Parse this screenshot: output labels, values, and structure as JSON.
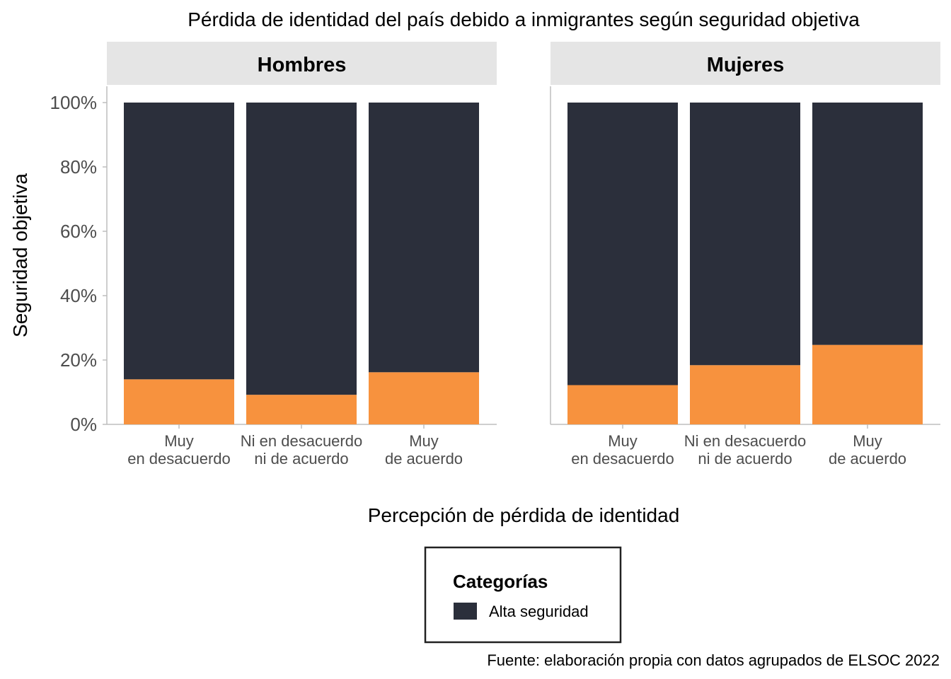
{
  "chart_data": {
    "type": "bar",
    "stacked": true,
    "title": "Pérdida de identidad del país debido a inmigrantes según seguridad objetiva",
    "xlabel": "Percepción de pérdida de identidad",
    "ylabel": "Seguridad objetiva",
    "ylim": [
      0,
      1
    ],
    "y_ticks": [
      "0%",
      "20%",
      "40%",
      "60%",
      "80%",
      "100%"
    ],
    "y_tick_values": [
      0,
      0.2,
      0.4,
      0.6,
      0.8,
      1.0
    ],
    "categories": [
      [
        "Muy",
        "en desacuerdo"
      ],
      [
        "Ni en desacuerdo",
        "ni de acuerdo"
      ],
      [
        "Muy",
        "de acuerdo"
      ]
    ],
    "facets": [
      {
        "name": "Hombres",
        "series": [
          {
            "name": "",
            "color": "#F7923E",
            "values": [
              0.14,
              0.092,
              0.162
            ]
          },
          {
            "name": "Alta seguridad",
            "color": "#2B2F3B",
            "values": [
              0.86,
              0.908,
              0.838
            ]
          }
        ]
      },
      {
        "name": "Mujeres",
        "series": [
          {
            "name": "",
            "color": "#F7923E",
            "values": [
              0.122,
              0.184,
              0.247
            ]
          },
          {
            "name": "Alta seguridad",
            "color": "#2B2F3B",
            "values": [
              0.878,
              0.816,
              0.753
            ]
          }
        ]
      }
    ],
    "legend": {
      "title": "Categorías",
      "entries": [
        {
          "label": "Alta seguridad",
          "color": "#2B2F3B"
        }
      ],
      "placement": "bottom"
    },
    "caption": "Fuente: elaboración propia con datos agrupados de ELSOC 2022",
    "grid": false
  }
}
